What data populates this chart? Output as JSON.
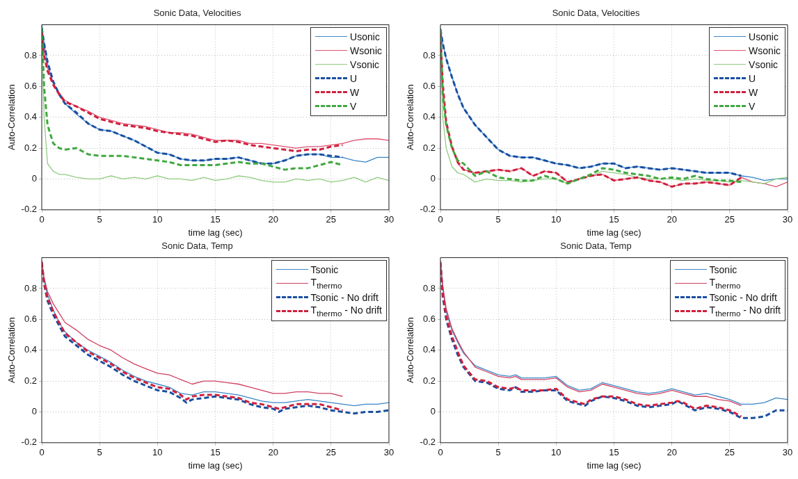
{
  "chart_data": [
    {
      "type": "line",
      "title": "Sonic Data, Velocities",
      "xlabel": "time lag (sec)",
      "ylabel": "Auto-Correlation",
      "xlim": [
        0,
        30
      ],
      "xticks": [
        0,
        5,
        10,
        15,
        20,
        25,
        30
      ],
      "ylim": [
        -0.2,
        1
      ],
      "yticks": [
        -0.2,
        0,
        0.2,
        0.4,
        0.6,
        0.8
      ],
      "grid": true,
      "legend": "top right",
      "series": [
        {
          "name": "Usonic",
          "color": "#3a86c8",
          "line_style": "solid",
          "x": [
            0,
            0.2,
            0.5,
            1,
            1.5,
            2,
            3,
            4,
            5,
            6,
            7,
            8,
            9,
            10,
            11,
            12,
            13,
            14,
            15,
            16,
            17,
            18,
            19,
            20,
            21,
            22,
            23,
            24,
            25,
            26,
            27,
            28,
            29,
            30
          ],
          "values": [
            1.0,
            0.88,
            0.75,
            0.62,
            0.55,
            0.49,
            0.42,
            0.36,
            0.32,
            0.31,
            0.28,
            0.25,
            0.21,
            0.17,
            0.16,
            0.13,
            0.12,
            0.12,
            0.13,
            0.13,
            0.14,
            0.12,
            0.1,
            0.1,
            0.12,
            0.15,
            0.16,
            0.16,
            0.14,
            0.14,
            0.12,
            0.11,
            0.14,
            0.14
          ]
        },
        {
          "name": "Wsonic",
          "color": "#e05070",
          "line_style": "solid",
          "x": [
            0,
            0.2,
            0.5,
            1,
            1.5,
            2,
            3,
            4,
            5,
            6,
            7,
            8,
            9,
            10,
            11,
            12,
            13,
            14,
            15,
            16,
            17,
            18,
            19,
            20,
            21,
            22,
            23,
            24,
            25,
            26,
            27,
            28,
            29,
            30
          ],
          "values": [
            0.95,
            0.82,
            0.72,
            0.62,
            0.56,
            0.51,
            0.47,
            0.44,
            0.4,
            0.38,
            0.36,
            0.35,
            0.34,
            0.32,
            0.3,
            0.3,
            0.29,
            0.27,
            0.25,
            0.25,
            0.25,
            0.23,
            0.23,
            0.22,
            0.21,
            0.2,
            0.21,
            0.21,
            0.22,
            0.23,
            0.25,
            0.26,
            0.26,
            0.25
          ]
        },
        {
          "name": "Vsonic",
          "color": "#90cc80",
          "line_style": "solid",
          "x": [
            0,
            0.2,
            0.5,
            1,
            1.5,
            2,
            3,
            4,
            5,
            6,
            7,
            8,
            9,
            10,
            11,
            12,
            13,
            14,
            15,
            16,
            17,
            18,
            19,
            20,
            21,
            22,
            23,
            24,
            25,
            26,
            27,
            28,
            29,
            30
          ],
          "values": [
            0.98,
            0.4,
            0.1,
            0.05,
            0.03,
            0.03,
            0.01,
            0.0,
            0.0,
            0.02,
            0.0,
            0.01,
            0.0,
            0.02,
            0.0,
            0.0,
            -0.01,
            0.01,
            -0.01,
            0.0,
            0.02,
            0.01,
            -0.01,
            -0.02,
            -0.02,
            0.0,
            -0.01,
            0.0,
            -0.02,
            -0.01,
            0.01,
            -0.02,
            0.01,
            -0.01
          ]
        },
        {
          "name": "U",
          "color": "#1a4fa0",
          "line_style": "dashed",
          "x": [
            0,
            0.2,
            0.5,
            1,
            1.5,
            2,
            3,
            4,
            5,
            6,
            7,
            8,
            9,
            10,
            11,
            12,
            13,
            14,
            15,
            16,
            17,
            18,
            19,
            20,
            21,
            22,
            23,
            24,
            25,
            26
          ],
          "values": [
            0.98,
            0.88,
            0.76,
            0.63,
            0.55,
            0.49,
            0.43,
            0.36,
            0.32,
            0.31,
            0.28,
            0.25,
            0.21,
            0.17,
            0.16,
            0.13,
            0.12,
            0.12,
            0.13,
            0.13,
            0.14,
            0.12,
            0.1,
            0.1,
            0.12,
            0.15,
            0.16,
            0.16,
            0.15,
            0.14
          ]
        },
        {
          "name": "W",
          "color": "#d0203c",
          "line_style": "dashed",
          "x": [
            0,
            0.2,
            0.5,
            1,
            1.5,
            2,
            3,
            4,
            5,
            6,
            7,
            8,
            9,
            10,
            11,
            12,
            13,
            14,
            15,
            16,
            17,
            18,
            19,
            20,
            21,
            22,
            23,
            24,
            25,
            26
          ],
          "values": [
            0.95,
            0.8,
            0.7,
            0.61,
            0.55,
            0.5,
            0.47,
            0.43,
            0.39,
            0.37,
            0.35,
            0.34,
            0.33,
            0.31,
            0.3,
            0.29,
            0.28,
            0.26,
            0.24,
            0.25,
            0.24,
            0.22,
            0.21,
            0.2,
            0.19,
            0.18,
            0.19,
            0.19,
            0.21,
            0.22
          ]
        },
        {
          "name": "V",
          "color": "#40a840",
          "line_style": "dashed",
          "x": [
            0,
            0.2,
            0.5,
            1,
            1.5,
            2,
            3,
            4,
            5,
            6,
            7,
            8,
            9,
            10,
            11,
            12,
            13,
            14,
            15,
            16,
            17,
            18,
            19,
            20,
            21,
            22,
            23,
            24,
            25,
            26
          ],
          "values": [
            0.98,
            0.6,
            0.35,
            0.23,
            0.2,
            0.19,
            0.2,
            0.16,
            0.15,
            0.15,
            0.15,
            0.14,
            0.13,
            0.12,
            0.11,
            0.09,
            0.09,
            0.09,
            0.09,
            0.1,
            0.11,
            0.1,
            0.1,
            0.08,
            0.06,
            0.07,
            0.07,
            0.09,
            0.11,
            0.09
          ]
        }
      ]
    },
    {
      "type": "line",
      "title": "Sonic Data, Velocities",
      "xlabel": "time lag (sec)",
      "ylabel": "Auto-Correlation",
      "xlim": [
        0,
        30
      ],
      "xticks": [
        0,
        5,
        10,
        15,
        20,
        25,
        30
      ],
      "ylim": [
        -0.2,
        1
      ],
      "yticks": [
        -0.2,
        0,
        0.2,
        0.4,
        0.6,
        0.8
      ],
      "grid": true,
      "legend": "top right",
      "series": [
        {
          "name": "Usonic",
          "color": "#3a86c8",
          "line_style": "solid",
          "x": [
            0,
            0.2,
            0.5,
            1,
            1.5,
            2,
            3,
            4,
            5,
            6,
            7,
            8,
            9,
            10,
            11,
            12,
            13,
            14,
            15,
            16,
            17,
            18,
            19,
            20,
            21,
            22,
            23,
            24,
            25,
            26,
            27,
            28,
            29,
            30
          ],
          "values": [
            0.98,
            0.88,
            0.78,
            0.66,
            0.55,
            0.46,
            0.35,
            0.27,
            0.19,
            0.15,
            0.14,
            0.14,
            0.12,
            0.1,
            0.09,
            0.07,
            0.08,
            0.1,
            0.1,
            0.07,
            0.08,
            0.07,
            0.06,
            0.07,
            0.06,
            0.05,
            0.04,
            0.04,
            0.04,
            0.02,
            0.01,
            -0.01,
            0.0,
            0.0
          ]
        },
        {
          "name": "Wsonic",
          "color": "#e05070",
          "line_style": "solid",
          "x": [
            0,
            0.2,
            0.5,
            1,
            1.5,
            2,
            3,
            4,
            5,
            6,
            7,
            8,
            9,
            10,
            11,
            12,
            13,
            14,
            15,
            16,
            17,
            18,
            19,
            20,
            21,
            22,
            23,
            24,
            25,
            26,
            27,
            28,
            29,
            30
          ],
          "values": [
            0.95,
            0.6,
            0.35,
            0.2,
            0.1,
            0.06,
            0.04,
            0.05,
            0.06,
            0.05,
            0.07,
            0.02,
            0.05,
            0.04,
            -0.02,
            0.0,
            0.02,
            0.03,
            -0.01,
            0.0,
            0.01,
            -0.01,
            -0.02,
            -0.05,
            -0.03,
            -0.03,
            -0.02,
            -0.03,
            -0.04,
            0.01,
            -0.02,
            -0.03,
            -0.05,
            -0.02
          ]
        },
        {
          "name": "Vsonic",
          "color": "#90cc80",
          "line_style": "solid",
          "x": [
            0,
            0.2,
            0.5,
            1,
            1.5,
            2,
            3,
            4,
            5,
            6,
            7,
            8,
            9,
            10,
            11,
            12,
            13,
            14,
            15,
            16,
            17,
            18,
            19,
            20,
            21,
            22,
            23,
            24,
            25,
            26,
            27,
            28,
            29,
            30
          ],
          "values": [
            0.95,
            0.4,
            0.2,
            0.08,
            0.04,
            0.03,
            -0.02,
            0.0,
            -0.01,
            -0.01,
            -0.02,
            -0.01,
            0.0,
            0.0,
            -0.03,
            0.0,
            0.02,
            0.05,
            0.04,
            0.03,
            0.01,
            0.0,
            0.0,
            0.0,
            -0.01,
            0.0,
            -0.01,
            -0.01,
            -0.02,
            -0.01,
            -0.02,
            -0.03,
            0.0,
            0.01
          ]
        },
        {
          "name": "U",
          "color": "#1a4fa0",
          "line_style": "dashed",
          "x": [
            0,
            0.2,
            0.5,
            1,
            1.5,
            2,
            3,
            4,
            5,
            6,
            7,
            8,
            9,
            10,
            11,
            12,
            13,
            14,
            15,
            16,
            17,
            18,
            19,
            20,
            21,
            22,
            23,
            24,
            25,
            26
          ],
          "values": [
            0.97,
            0.88,
            0.78,
            0.66,
            0.55,
            0.46,
            0.35,
            0.27,
            0.19,
            0.15,
            0.14,
            0.14,
            0.12,
            0.1,
            0.09,
            0.07,
            0.08,
            0.1,
            0.1,
            0.07,
            0.08,
            0.07,
            0.06,
            0.07,
            0.06,
            0.05,
            0.04,
            0.04,
            0.04,
            0.02
          ]
        },
        {
          "name": "W",
          "color": "#d0203c",
          "line_style": "dashed",
          "x": [
            0,
            0.2,
            0.5,
            1,
            1.5,
            2,
            3,
            4,
            5,
            6,
            7,
            8,
            9,
            10,
            11,
            12,
            13,
            14,
            15,
            16,
            17,
            18,
            19,
            20,
            21,
            22,
            23,
            24,
            25,
            26
          ],
          "values": [
            0.95,
            0.62,
            0.37,
            0.21,
            0.11,
            0.06,
            0.04,
            0.05,
            0.06,
            0.05,
            0.07,
            0.02,
            0.05,
            0.04,
            -0.02,
            0.0,
            0.02,
            0.03,
            -0.01,
            0.0,
            0.01,
            -0.01,
            -0.02,
            -0.05,
            -0.03,
            -0.03,
            -0.02,
            -0.03,
            -0.04,
            0.01
          ]
        },
        {
          "name": "V",
          "color": "#40a840",
          "line_style": "dashed",
          "x": [
            0,
            0.2,
            0.5,
            1,
            1.5,
            2,
            3,
            4,
            5,
            6,
            7,
            8,
            9,
            10,
            11,
            12,
            13,
            14,
            15,
            16,
            17,
            18,
            19,
            20,
            21,
            22,
            23,
            24,
            25,
            26
          ],
          "values": [
            0.97,
            0.55,
            0.35,
            0.2,
            0.12,
            0.1,
            0.02,
            0.05,
            0.01,
            0.0,
            -0.01,
            -0.01,
            0.02,
            0.0,
            -0.03,
            0.0,
            0.03,
            0.07,
            0.06,
            0.04,
            0.03,
            0.02,
            0.0,
            0.01,
            0.0,
            0.02,
            0.0,
            -0.01,
            -0.01,
            -0.02
          ]
        }
      ]
    },
    {
      "type": "line",
      "title": "Sonic Data, Temp",
      "xlabel": "time lag (sec)",
      "ylabel": "Auto-Correlation",
      "xlim": [
        0,
        30
      ],
      "xticks": [
        0,
        5,
        10,
        15,
        20,
        25,
        30
      ],
      "ylim": [
        -0.2,
        1
      ],
      "yticks": [
        -0.2,
        0,
        0.2,
        0.4,
        0.6,
        0.8
      ],
      "grid": true,
      "legend": "top right",
      "series": [
        {
          "name": "Tsonic",
          "color": "#3a86c8",
          "line_style": "solid",
          "x": [
            0,
            0.2,
            0.5,
            1,
            1.5,
            2,
            3,
            4,
            5,
            6,
            7,
            8,
            9,
            10,
            11,
            12,
            13,
            14,
            15,
            16,
            17,
            18,
            19,
            20,
            21,
            22,
            23,
            24,
            25,
            26,
            27,
            28,
            29,
            30
          ],
          "values": [
            0.98,
            0.85,
            0.76,
            0.66,
            0.58,
            0.52,
            0.45,
            0.4,
            0.36,
            0.32,
            0.27,
            0.23,
            0.2,
            0.18,
            0.16,
            0.12,
            0.11,
            0.13,
            0.13,
            0.12,
            0.11,
            0.09,
            0.07,
            0.06,
            0.06,
            0.07,
            0.08,
            0.07,
            0.06,
            0.05,
            0.04,
            0.05,
            0.05,
            0.06
          ]
        },
        {
          "name": "T$_{thermo}$",
          "color": "#d04060",
          "line_style": "solid",
          "x": [
            0,
            0.2,
            0.5,
            1,
            1.5,
            2,
            3,
            4,
            5,
            6,
            7,
            8,
            9,
            10,
            11,
            12,
            13,
            14,
            15,
            16,
            17,
            18,
            19,
            20,
            21,
            22,
            23,
            24,
            25,
            26
          ],
          "values": [
            0.98,
            0.87,
            0.78,
            0.7,
            0.64,
            0.58,
            0.53,
            0.47,
            0.43,
            0.4,
            0.35,
            0.31,
            0.28,
            0.25,
            0.24,
            0.21,
            0.18,
            0.2,
            0.2,
            0.19,
            0.18,
            0.16,
            0.14,
            0.12,
            0.12,
            0.13,
            0.13,
            0.12,
            0.12,
            0.1
          ]
        },
        {
          "name": "Tsonic - No drift",
          "color": "#1a4fa0",
          "line_style": "dashed",
          "x": [
            0,
            0.2,
            0.5,
            1,
            1.5,
            2,
            3,
            4,
            5,
            6,
            7,
            8,
            9,
            10,
            11,
            12,
            12.5,
            13,
            14,
            15,
            16,
            17,
            18,
            19,
            20,
            20.5,
            21,
            22,
            23,
            24,
            25,
            26,
            27,
            28,
            29,
            30
          ],
          "values": [
            0.97,
            0.83,
            0.72,
            0.63,
            0.56,
            0.49,
            0.43,
            0.37,
            0.33,
            0.29,
            0.24,
            0.2,
            0.17,
            0.14,
            0.13,
            0.09,
            0.06,
            0.08,
            0.09,
            0.1,
            0.09,
            0.08,
            0.05,
            0.03,
            0.02,
            0.0,
            0.02,
            0.03,
            0.04,
            0.03,
            0.01,
            0.0,
            -0.01,
            0.0,
            0.0,
            0.01
          ]
        },
        {
          "name": "T$_{thermo}$ - No drift",
          "color": "#d0203c",
          "line_style": "dashed",
          "x": [
            0,
            0.2,
            0.5,
            1,
            1.5,
            2,
            3,
            4,
            5,
            6,
            7,
            8,
            9,
            10,
            11,
            12,
            12.5,
            13,
            14,
            15,
            16,
            17,
            18,
            19,
            20,
            20.5,
            21,
            22,
            23,
            24,
            25,
            26
          ],
          "values": [
            0.97,
            0.84,
            0.74,
            0.65,
            0.58,
            0.51,
            0.45,
            0.39,
            0.35,
            0.31,
            0.26,
            0.22,
            0.19,
            0.16,
            0.15,
            0.11,
            0.08,
            0.1,
            0.11,
            0.11,
            0.1,
            0.09,
            0.06,
            0.05,
            0.03,
            0.02,
            0.03,
            0.05,
            0.05,
            0.05,
            0.03,
            0.01
          ]
        }
      ]
    },
    {
      "type": "line",
      "title": "Sonic Data, Temp",
      "xlabel": "time lag (sec)",
      "ylabel": "Auto-Correlation",
      "xlim": [
        0,
        30
      ],
      "xticks": [
        0,
        5,
        10,
        15,
        20,
        25,
        30
      ],
      "ylim": [
        -0.2,
        1
      ],
      "yticks": [
        -0.2,
        0,
        0.2,
        0.4,
        0.6,
        0.8
      ],
      "grid": true,
      "legend": "top right",
      "series": [
        {
          "name": "Tsonic",
          "color": "#3a86c8",
          "line_style": "solid",
          "x": [
            0,
            0.2,
            0.5,
            1,
            1.5,
            2,
            3,
            4,
            5,
            6,
            6.5,
            7,
            8,
            9,
            10,
            11,
            12,
            13,
            14,
            15,
            16,
            17,
            18,
            19,
            20,
            21,
            22,
            23,
            24,
            25,
            26,
            27,
            28,
            29,
            30
          ],
          "values": [
            0.98,
            0.8,
            0.65,
            0.53,
            0.45,
            0.38,
            0.3,
            0.27,
            0.24,
            0.23,
            0.24,
            0.22,
            0.22,
            0.22,
            0.23,
            0.17,
            0.14,
            0.15,
            0.19,
            0.17,
            0.15,
            0.13,
            0.12,
            0.13,
            0.15,
            0.13,
            0.11,
            0.12,
            0.1,
            0.08,
            0.05,
            0.05,
            0.06,
            0.09,
            0.08
          ]
        },
        {
          "name": "T$_{thermo}$",
          "color": "#d04060",
          "line_style": "solid",
          "x": [
            0,
            0.2,
            0.5,
            1,
            1.5,
            2,
            3,
            4,
            5,
            6,
            6.5,
            7,
            8,
            9,
            10,
            11,
            12,
            13,
            14,
            15,
            16,
            17,
            18,
            19,
            20,
            21,
            22,
            23,
            24,
            25,
            26
          ],
          "values": [
            0.97,
            0.82,
            0.67,
            0.54,
            0.46,
            0.39,
            0.29,
            0.26,
            0.23,
            0.22,
            0.23,
            0.21,
            0.21,
            0.21,
            0.22,
            0.16,
            0.13,
            0.14,
            0.18,
            0.16,
            0.14,
            0.12,
            0.11,
            0.12,
            0.14,
            0.12,
            0.1,
            0.1,
            0.08,
            0.07,
            0.04
          ]
        },
        {
          "name": "Tsonic - No drift",
          "color": "#1a4fa0",
          "line_style": "dashed",
          "x": [
            0,
            0.2,
            0.5,
            1,
            1.5,
            2,
            3,
            4,
            5,
            6,
            6.5,
            7,
            8,
            9,
            10,
            11,
            12,
            12.5,
            13,
            14,
            15,
            16,
            17,
            18,
            19,
            20,
            20.5,
            21,
            22,
            23,
            24,
            25,
            26,
            27,
            28,
            29,
            30
          ],
          "values": [
            0.97,
            0.75,
            0.6,
            0.47,
            0.37,
            0.29,
            0.2,
            0.19,
            0.15,
            0.14,
            0.16,
            0.13,
            0.13,
            0.14,
            0.14,
            0.07,
            0.05,
            0.04,
            0.07,
            0.1,
            0.09,
            0.07,
            0.04,
            0.03,
            0.04,
            0.05,
            0.07,
            0.05,
            0.01,
            0.03,
            0.02,
            0.0,
            -0.04,
            -0.04,
            -0.03,
            0.01,
            0.01
          ]
        },
        {
          "name": "T$_{thermo}$ - No drift",
          "color": "#d0203c",
          "line_style": "dashed",
          "x": [
            0,
            0.2,
            0.5,
            1,
            1.5,
            2,
            3,
            4,
            5,
            6,
            6.5,
            7,
            8,
            9,
            10,
            11,
            12,
            12.5,
            13,
            14,
            15,
            16,
            17,
            18,
            19,
            20,
            20.5,
            21,
            22,
            23,
            24,
            25,
            26
          ],
          "values": [
            0.97,
            0.77,
            0.62,
            0.49,
            0.39,
            0.3,
            0.21,
            0.2,
            0.16,
            0.15,
            0.16,
            0.14,
            0.14,
            0.14,
            0.15,
            0.08,
            0.06,
            0.05,
            0.08,
            0.1,
            0.1,
            0.08,
            0.05,
            0.04,
            0.05,
            0.06,
            0.07,
            0.06,
            0.02,
            0.04,
            0.03,
            0.01,
            -0.03
          ]
        }
      ]
    }
  ]
}
